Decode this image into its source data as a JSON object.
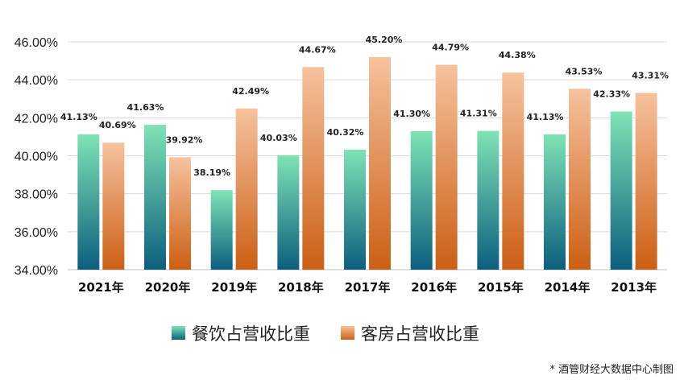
{
  "chart_data": {
    "type": "bar",
    "categories": [
      "2021年",
      "2020年",
      "2019年",
      "2018年",
      "2017年",
      "2016年",
      "2015年",
      "2014年",
      "2013年"
    ],
    "series": [
      {
        "name": "餐饮占营收比重",
        "values": [
          41.13,
          41.63,
          38.19,
          40.03,
          40.32,
          41.3,
          41.31,
          41.13,
          42.33
        ],
        "labels": [
          "41.13%",
          "41.63%",
          "38.19%",
          "40.03%",
          "40.32%",
          "41.30%",
          "41.31%",
          "41.13%",
          "42.33%"
        ],
        "color_top": "#7fe3b5",
        "color_bottom": "#0b5f7e"
      },
      {
        "name": "客房占营收比重",
        "values": [
          40.69,
          39.92,
          42.49,
          44.67,
          45.2,
          44.79,
          44.38,
          43.53,
          43.31
        ],
        "labels": [
          "40.69%",
          "39.92%",
          "42.49%",
          "44.67%",
          "45.20%",
          "44.79%",
          "44.38%",
          "43.53%",
          "43.31%"
        ],
        "color_top": "#f6c29d",
        "color_bottom": "#cc5f14"
      }
    ],
    "y_ticks": [
      "34.00%",
      "36.00%",
      "38.00%",
      "40.00%",
      "42.00%",
      "44.00%",
      "46.00%"
    ],
    "ylim": [
      34,
      46
    ],
    "grid": true,
    "legend_position": "bottom",
    "source_note": "* 酒管财经大数据中心制图"
  }
}
